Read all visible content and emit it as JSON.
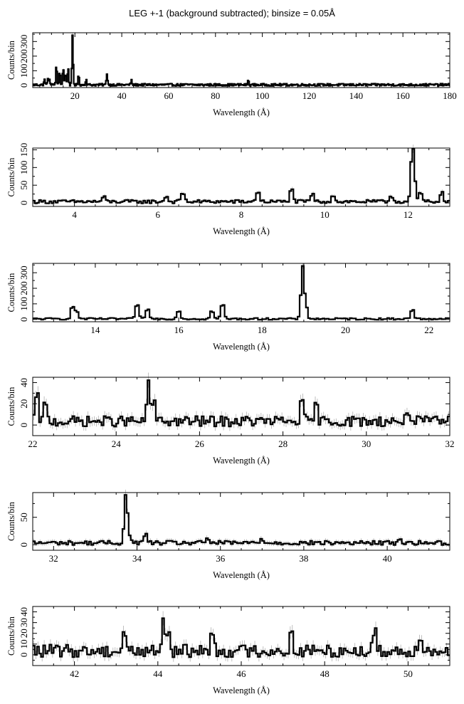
{
  "title": "LEG +-1 (background subtracted); binsize = 0.05Å",
  "chart_data": [
    {
      "type": "line",
      "xlabel": "Wavelength (Å)",
      "ylabel": "Counts/bin",
      "xlim": [
        2,
        180
      ],
      "ylim": [
        -15,
        360
      ],
      "xticks": [
        20,
        40,
        60,
        80,
        100,
        120,
        140,
        160,
        180
      ],
      "xtick_labels": [
        "20",
        "40",
        "60",
        "80",
        "100",
        "120",
        "140",
        "160",
        "180"
      ],
      "yticks": [
        0,
        100,
        200,
        300
      ],
      "ytick_labels": [
        "0",
        "100",
        "200",
        "300"
      ],
      "grid": false,
      "lines": [
        {
          "x": 7,
          "y": 35
        },
        {
          "x": 8.4,
          "y": 38
        },
        {
          "x": 9.2,
          "y": 40
        },
        {
          "x": 12.1,
          "y": 130
        },
        {
          "x": 13.5,
          "y": 95
        },
        {
          "x": 15.0,
          "y": 115
        },
        {
          "x": 16.0,
          "y": 85
        },
        {
          "x": 17.1,
          "y": 120
        },
        {
          "x": 19.0,
          "y": 335
        },
        {
          "x": 21.6,
          "y": 65
        },
        {
          "x": 24.8,
          "y": 40
        },
        {
          "x": 33.7,
          "y": 80
        },
        {
          "x": 44.1,
          "y": 30
        },
        {
          "x": 94,
          "y": 30
        }
      ],
      "noise": 8
    },
    {
      "type": "line",
      "xlabel": "Wavelength (Å)",
      "ylabel": "Counts/bin",
      "xlim": [
        3.0,
        13.0
      ],
      "ylim": [
        -10,
        155
      ],
      "xticks": [
        4,
        6,
        8,
        10,
        12
      ],
      "xtick_labels": [
        "4",
        "6",
        "8",
        "10",
        "12"
      ],
      "yticks": [
        0,
        50,
        100,
        150
      ],
      "ytick_labels": [
        "0",
        "50",
        "100",
        "150"
      ],
      "grid": false,
      "lines": [
        {
          "x": 4.7,
          "y": 15
        },
        {
          "x": 6.2,
          "y": 18
        },
        {
          "x": 6.6,
          "y": 30
        },
        {
          "x": 8.4,
          "y": 35
        },
        {
          "x": 9.2,
          "y": 40
        },
        {
          "x": 9.7,
          "y": 25
        },
        {
          "x": 10.2,
          "y": 22
        },
        {
          "x": 11.6,
          "y": 20
        },
        {
          "x": 12.1,
          "y": 135
        },
        {
          "x": 12.15,
          "y": 55
        },
        {
          "x": 12.3,
          "y": 28
        },
        {
          "x": 12.8,
          "y": 30
        }
      ],
      "noise": 5
    },
    {
      "type": "line",
      "xlabel": "Wavelength (Å)",
      "ylabel": "Counts/bin",
      "xlim": [
        12.5,
        22.5
      ],
      "ylim": [
        -15,
        360
      ],
      "xticks": [
        14,
        16,
        18,
        20,
        22
      ],
      "xtick_labels": [
        "14",
        "16",
        "18",
        "20",
        "22"
      ],
      "yticks": [
        0,
        100,
        200,
        300
      ],
      "ytick_labels": [
        "0",
        "100",
        "200",
        "300"
      ],
      "grid": false,
      "lines": [
        {
          "x": 13.45,
          "y": 85
        },
        {
          "x": 13.55,
          "y": 60
        },
        {
          "x": 15.0,
          "y": 110
        },
        {
          "x": 15.25,
          "y": 40
        },
        {
          "x": 15.25,
          "y": 35
        },
        {
          "x": 16.0,
          "y": 65
        },
        {
          "x": 16.8,
          "y": 60
        },
        {
          "x": 17.05,
          "y": 110
        },
        {
          "x": 18.97,
          "y": 335
        },
        {
          "x": 19.05,
          "y": 90
        },
        {
          "x": 21.6,
          "y": 70
        }
      ],
      "noise": 6
    },
    {
      "type": "line",
      "xlabel": "Wavelength (Å)",
      "ylabel": "Counts/bin",
      "xlim": [
        22,
        32
      ],
      "ylim": [
        -10,
        45
      ],
      "xticks": [
        22,
        24,
        26,
        28,
        30,
        32
      ],
      "xtick_labels": [
        "22",
        "24",
        "26",
        "28",
        "30",
        "32"
      ],
      "yticks": [
        0,
        20,
        40
      ],
      "ytick_labels": [
        "0",
        "20",
        "40"
      ],
      "grid": false,
      "lines": [
        {
          "x": 22.1,
          "y": 28
        },
        {
          "x": 22.3,
          "y": 18
        },
        {
          "x": 24.78,
          "y": 38
        },
        {
          "x": 24.9,
          "y": 20
        },
        {
          "x": 28.45,
          "y": 20
        },
        {
          "x": 28.8,
          "y": 17
        },
        {
          "x": 31.0,
          "y": 13
        }
      ],
      "noise": 5
    },
    {
      "type": "line",
      "xlabel": "Wavelength (Å)",
      "ylabel": "Counts/bin",
      "xlim": [
        31.5,
        41.5
      ],
      "ylim": [
        -10,
        95
      ],
      "xticks": [
        32,
        34,
        36,
        38,
        40
      ],
      "xtick_labels": [
        "32",
        "34",
        "36",
        "38",
        "40"
      ],
      "yticks": [
        0,
        50
      ],
      "ytick_labels": [
        "0",
        "50"
      ],
      "grid": false,
      "lines": [
        {
          "x": 33.73,
          "y": 85
        },
        {
          "x": 33.8,
          "y": 20
        },
        {
          "x": 34.2,
          "y": 18
        },
        {
          "x": 35.7,
          "y": 10
        },
        {
          "x": 37.0,
          "y": 9
        },
        {
          "x": 40.3,
          "y": 9
        }
      ],
      "noise": 4
    },
    {
      "type": "line",
      "xlabel": "Wavelength (Å)",
      "ylabel": "Counts/bin",
      "xlim": [
        41,
        51
      ],
      "ylim": [
        -10,
        45
      ],
      "xticks": [
        42,
        44,
        46,
        48,
        50
      ],
      "xtick_labels": [
        "42",
        "44",
        "46",
        "48",
        "50"
      ],
      "yticks": [
        0,
        10,
        20,
        30,
        40
      ],
      "ytick_labels": [
        "0",
        "10",
        "20",
        "30",
        "40"
      ],
      "grid": false,
      "lines": [
        {
          "x": 43.2,
          "y": 22
        },
        {
          "x": 44.13,
          "y": 32
        },
        {
          "x": 44.25,
          "y": 18
        },
        {
          "x": 45.3,
          "y": 20
        },
        {
          "x": 47.2,
          "y": 18
        },
        {
          "x": 49.2,
          "y": 22
        },
        {
          "x": 50.3,
          "y": 20
        }
      ],
      "noise": 6
    }
  ]
}
